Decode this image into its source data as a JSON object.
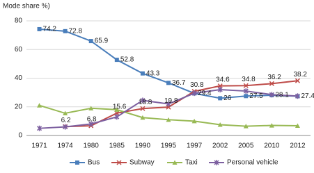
{
  "chart_data": {
    "type": "line",
    "title": "Mode share %)",
    "categories": [
      "1971",
      "1974",
      "1980",
      "1985",
      "1990",
      "1995",
      "1997",
      "2002",
      "2005",
      "2010",
      "2012"
    ],
    "ylim": [
      0,
      80
    ],
    "yticks": [
      0,
      20,
      40,
      60,
      80
    ],
    "grid": true,
    "legend": "bottom",
    "series": [
      {
        "name": "Bus",
        "color": "#4a7ebb",
        "marker": "square",
        "data_labels": true,
        "values": [
          74.2,
          72.8,
          65.9,
          52.8,
          43.3,
          36.7,
          29.4,
          26,
          27.5,
          28.1,
          27.4
        ]
      },
      {
        "name": "Subway",
        "color": "#be4b48",
        "marker": "x",
        "data_labels": true,
        "values": [
          null,
          6.2,
          6.8,
          15.6,
          18.8,
          19.8,
          30.8,
          34.6,
          34.8,
          36.2,
          38.2
        ]
      },
      {
        "name": "Taxi",
        "color": "#98b954",
        "marker": "triangle",
        "data_labels": false,
        "values": [
          21,
          15.5,
          19,
          18,
          12.5,
          11,
          10,
          7.5,
          6.5,
          7,
          6.8
        ]
      },
      {
        "name": "Personal vehicle",
        "color": "#7d60a0",
        "marker": "star",
        "data_labels": false,
        "values": [
          5,
          6,
          8,
          13,
          24.5,
          22,
          29.5,
          32,
          31,
          28.5,
          27.5
        ]
      }
    ]
  }
}
